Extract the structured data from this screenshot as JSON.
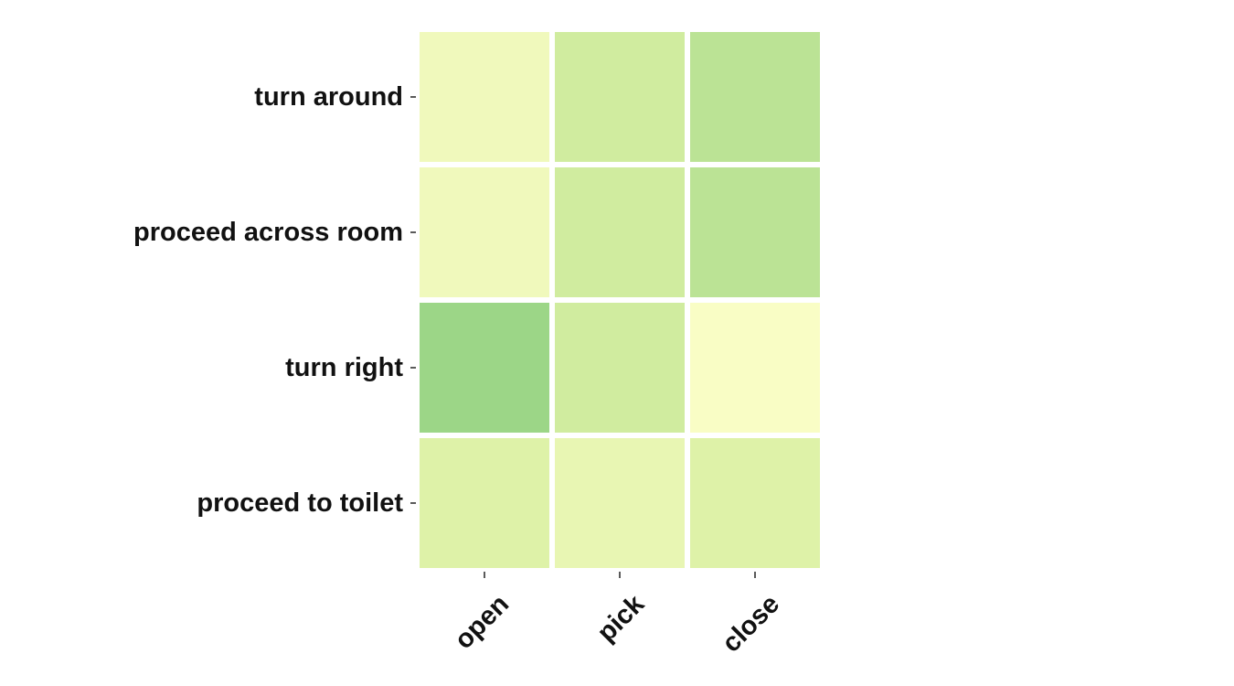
{
  "chart_data": {
    "type": "heatmap",
    "title": "",
    "xlabel": "",
    "ylabel": "",
    "categories": [
      "open",
      "pick",
      "close"
    ],
    "rows": [
      "turn around",
      "proceed across room",
      "turn right",
      "proceed to toilet"
    ],
    "values": [
      [
        0.1,
        0.3,
        0.42
      ],
      [
        0.1,
        0.3,
        0.42
      ],
      [
        0.58,
        0.3,
        0.04
      ],
      [
        0.22,
        0.15,
        0.22
      ]
    ],
    "colormap": [
      "#ffffcc",
      "#d9f0a3",
      "#addd8e",
      "#78c679",
      "#31a354"
    ],
    "value_range": [
      0,
      1
    ],
    "grid": false,
    "legend": "none",
    "colors": {
      "cell_gap": "#ffffff",
      "text": "#111111"
    }
  }
}
